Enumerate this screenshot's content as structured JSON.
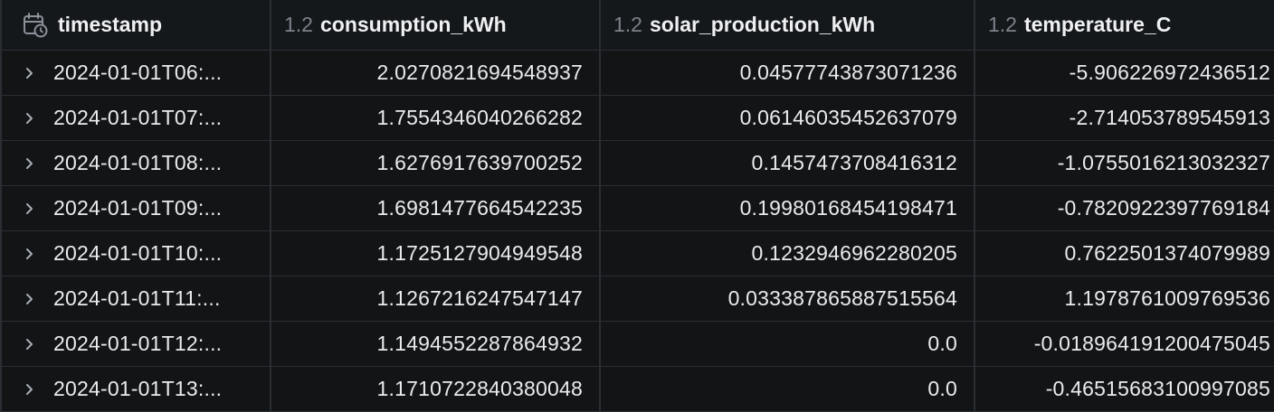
{
  "columns": {
    "timestamp": {
      "type": "",
      "name": "timestamp",
      "icon": "calendar-clock-icon"
    },
    "consumption": {
      "type": "1.2",
      "name": "consumption_kWh"
    },
    "solar": {
      "type": "1.2",
      "name": "solar_production_kWh"
    },
    "temperature": {
      "type": "1.2",
      "name": "temperature_C"
    }
  },
  "rows": [
    {
      "timestamp": "2024-01-01T06:...",
      "consumption": "2.0270821694548937",
      "solar": "0.04577743873071236",
      "temperature": "-5.906226972436512"
    },
    {
      "timestamp": "2024-01-01T07:...",
      "consumption": "1.7554346040266282",
      "solar": "0.06146035452637079",
      "temperature": "-2.714053789545913"
    },
    {
      "timestamp": "2024-01-01T08:...",
      "consumption": "1.6276917639700252",
      "solar": "0.1457473708416312",
      "temperature": "-1.0755016213032327"
    },
    {
      "timestamp": "2024-01-01T09:...",
      "consumption": "1.6981477664542235",
      "solar": "0.19980168454198471",
      "temperature": "-0.7820922397769184"
    },
    {
      "timestamp": "2024-01-01T10:...",
      "consumption": "1.1725127904949548",
      "solar": "0.1232946962280205",
      "temperature": "0.7622501374079989"
    },
    {
      "timestamp": "2024-01-01T11:...",
      "consumption": "1.1267216247547147",
      "solar": "0.033387865887515564",
      "temperature": "1.1978761009769536"
    },
    {
      "timestamp": "2024-01-01T12:...",
      "consumption": "1.1494552287864932",
      "solar": "0.0",
      "temperature": "-0.018964191200475045"
    },
    {
      "timestamp": "2024-01-01T13:...",
      "consumption": "1.1710722840380048",
      "solar": "0.0",
      "temperature": "-0.46515683100997085"
    }
  ]
}
